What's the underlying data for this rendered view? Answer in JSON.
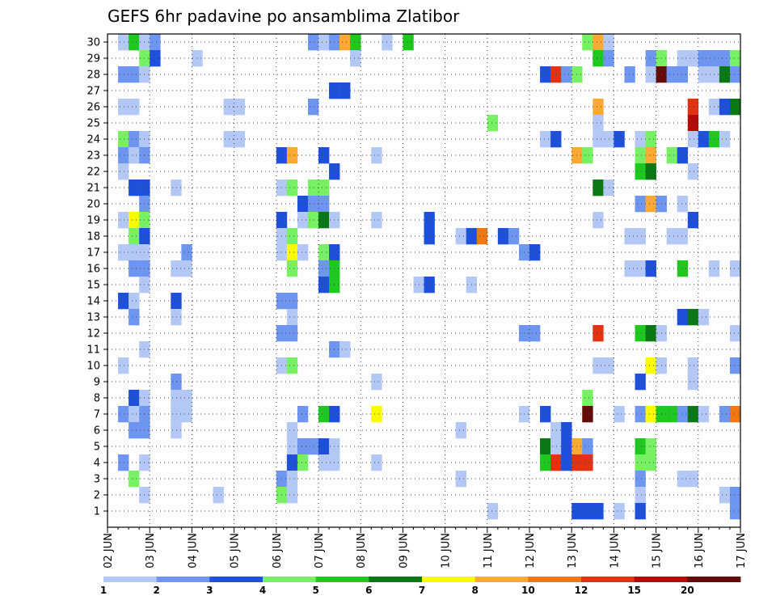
{
  "chart_data": {
    "type": "heatmap",
    "title": "GEFS 6hr padavine po ansamblima Zlatibor",
    "y_ticks": [
      "1",
      "2",
      "3",
      "4",
      "5",
      "6",
      "7",
      "8",
      "9",
      "10",
      "11",
      "12",
      "13",
      "14",
      "15",
      "16",
      "17",
      "18",
      "19",
      "20",
      "21",
      "22",
      "23",
      "24",
      "25",
      "26",
      "27",
      "28",
      "29",
      "30"
    ],
    "x_ticks": [
      "02 JUN",
      "03 JUN",
      "04 JUN",
      "05 JUN",
      "06 JUN",
      "07 JUN",
      "08 JUN",
      "09 JUN",
      "10 JUN",
      "11 JUN",
      "12 JUN",
      "13 JUN",
      "14 JUN",
      "15 JUN",
      "16 JUN",
      "17 JUN"
    ],
    "legend_ticks": [
      "1",
      "2",
      "3",
      "4",
      "5",
      "6",
      "7",
      "8",
      "10",
      "12",
      "15",
      "20"
    ],
    "legend_colors": [
      "#b4c8f5",
      "#6e96f0",
      "#1e50dc",
      "#78f064",
      "#1ec81e",
      "#0a7814",
      "#fafa00",
      "#faaa32",
      "#f07814",
      "#e13214",
      "#b40a0a",
      "#640a0a"
    ],
    "columns_per_day": 4,
    "x_start_offset_steps": 1,
    "cells": [
      [
        30,
        1,
        1
      ],
      [
        30,
        2,
        5
      ],
      [
        30,
        3,
        1
      ],
      [
        30,
        4,
        2
      ],
      [
        30,
        19,
        2
      ],
      [
        30,
        20,
        1
      ],
      [
        30,
        21,
        2
      ],
      [
        30,
        22,
        8
      ],
      [
        30,
        23,
        5
      ],
      [
        30,
        26,
        1
      ],
      [
        30,
        28,
        5
      ],
      [
        30,
        45,
        4
      ],
      [
        30,
        46,
        8
      ],
      [
        30,
        47,
        1
      ],
      [
        30,
        67,
        3
      ],
      [
        30,
        70,
        2
      ],
      [
        30,
        71,
        8
      ],
      [
        30,
        72,
        2
      ],
      [
        29,
        3,
        4
      ],
      [
        29,
        4,
        3
      ],
      [
        29,
        8,
        1
      ],
      [
        29,
        23,
        1
      ],
      [
        29,
        46,
        5
      ],
      [
        29,
        47,
        2
      ],
      [
        29,
        51,
        2
      ],
      [
        29,
        52,
        4
      ],
      [
        29,
        54,
        1
      ],
      [
        29,
        55,
        1
      ],
      [
        29,
        56,
        2
      ],
      [
        29,
        57,
        2
      ],
      [
        29,
        58,
        2
      ],
      [
        29,
        59,
        4
      ],
      [
        28,
        1,
        2
      ],
      [
        28,
        2,
        2
      ],
      [
        28,
        3,
        1
      ],
      [
        28,
        41,
        3
      ],
      [
        28,
        42,
        10
      ],
      [
        28,
        43,
        2
      ],
      [
        28,
        44,
        4
      ],
      [
        28,
        49,
        2
      ],
      [
        28,
        51,
        1
      ],
      [
        28,
        52,
        12
      ],
      [
        28,
        53,
        2
      ],
      [
        28,
        54,
        2
      ],
      [
        28,
        56,
        1
      ],
      [
        28,
        57,
        1
      ],
      [
        28,
        58,
        6
      ],
      [
        28,
        59,
        2
      ],
      [
        28,
        61,
        5
      ],
      [
        28,
        62,
        6
      ],
      [
        28,
        63,
        1
      ],
      [
        28,
        71,
        4
      ],
      [
        28,
        72,
        1
      ],
      [
        27,
        21,
        3
      ],
      [
        27,
        22,
        3
      ],
      [
        27,
        61,
        2
      ],
      [
        27,
        62,
        8
      ],
      [
        26,
        1,
        1
      ],
      [
        26,
        2,
        1
      ],
      [
        26,
        11,
        1
      ],
      [
        26,
        12,
        1
      ],
      [
        26,
        19,
        2
      ],
      [
        26,
        46,
        8
      ],
      [
        26,
        55,
        10
      ],
      [
        26,
        57,
        1
      ],
      [
        26,
        58,
        3
      ],
      [
        26,
        59,
        6
      ],
      [
        26,
        60,
        1
      ],
      [
        26,
        61,
        1
      ],
      [
        26,
        62,
        1
      ],
      [
        25,
        36,
        4
      ],
      [
        25,
        46,
        1
      ],
      [
        25,
        55,
        11
      ],
      [
        25,
        71,
        1
      ],
      [
        24,
        1,
        4
      ],
      [
        24,
        2,
        2
      ],
      [
        24,
        3,
        1
      ],
      [
        24,
        11,
        1
      ],
      [
        24,
        12,
        1
      ],
      [
        24,
        41,
        1
      ],
      [
        24,
        42,
        3
      ],
      [
        24,
        46,
        1
      ],
      [
        24,
        47,
        1
      ],
      [
        24,
        48,
        3
      ],
      [
        24,
        50,
        1
      ],
      [
        24,
        51,
        4
      ],
      [
        24,
        55,
        1
      ],
      [
        24,
        56,
        3
      ],
      [
        24,
        57,
        5
      ],
      [
        24,
        58,
        1
      ],
      [
        24,
        60,
        1
      ],
      [
        24,
        63,
        10
      ],
      [
        24,
        64,
        7
      ],
      [
        24,
        65,
        9
      ],
      [
        23,
        1,
        2
      ],
      [
        23,
        2,
        1
      ],
      [
        23,
        3,
        2
      ],
      [
        23,
        16,
        3
      ],
      [
        23,
        17,
        8
      ],
      [
        23,
        20,
        3
      ],
      [
        23,
        25,
        1
      ],
      [
        23,
        44,
        8
      ],
      [
        23,
        45,
        4
      ],
      [
        23,
        50,
        4
      ],
      [
        23,
        51,
        8
      ],
      [
        23,
        53,
        4
      ],
      [
        23,
        54,
        3
      ],
      [
        23,
        63,
        5
      ],
      [
        23,
        71,
        3
      ],
      [
        22,
        1,
        1
      ],
      [
        22,
        21,
        3
      ],
      [
        22,
        50,
        5
      ],
      [
        22,
        51,
        6
      ],
      [
        22,
        55,
        1
      ],
      [
        21,
        2,
        3
      ],
      [
        21,
        3,
        3
      ],
      [
        21,
        6,
        1
      ],
      [
        21,
        16,
        1
      ],
      [
        21,
        17,
        4
      ],
      [
        21,
        19,
        4
      ],
      [
        21,
        20,
        4
      ],
      [
        21,
        46,
        6
      ],
      [
        21,
        47,
        1
      ],
      [
        20,
        3,
        2
      ],
      [
        20,
        18,
        3
      ],
      [
        20,
        19,
        2
      ],
      [
        20,
        20,
        2
      ],
      [
        20,
        50,
        2
      ],
      [
        20,
        51,
        8
      ],
      [
        20,
        52,
        2
      ],
      [
        20,
        54,
        1
      ],
      [
        19,
        1,
        1
      ],
      [
        19,
        2,
        7
      ],
      [
        19,
        3,
        4
      ],
      [
        19,
        16,
        3
      ],
      [
        19,
        18,
        1
      ],
      [
        19,
        19,
        4
      ],
      [
        19,
        20,
        6
      ],
      [
        19,
        21,
        1
      ],
      [
        19,
        25,
        1
      ],
      [
        19,
        30,
        3
      ],
      [
        19,
        46,
        1
      ],
      [
        19,
        55,
        3
      ],
      [
        19,
        60,
        1
      ],
      [
        18,
        2,
        4
      ],
      [
        18,
        3,
        3
      ],
      [
        18,
        16,
        1
      ],
      [
        18,
        17,
        4
      ],
      [
        18,
        30,
        3
      ],
      [
        18,
        33,
        1
      ],
      [
        18,
        34,
        3
      ],
      [
        18,
        35,
        9
      ],
      [
        18,
        37,
        3
      ],
      [
        18,
        38,
        2
      ],
      [
        18,
        49,
        1
      ],
      [
        18,
        50,
        1
      ],
      [
        18,
        53,
        1
      ],
      [
        18,
        54,
        1
      ],
      [
        18,
        62,
        4
      ],
      [
        18,
        63,
        1
      ],
      [
        17,
        1,
        1
      ],
      [
        17,
        2,
        1
      ],
      [
        17,
        3,
        1
      ],
      [
        17,
        7,
        2
      ],
      [
        17,
        16,
        1
      ],
      [
        17,
        17,
        7
      ],
      [
        17,
        18,
        1
      ],
      [
        17,
        20,
        4
      ],
      [
        17,
        21,
        3
      ],
      [
        17,
        39,
        2
      ],
      [
        17,
        40,
        3
      ],
      [
        17,
        60,
        11
      ],
      [
        17,
        61,
        1
      ],
      [
        17,
        62,
        5
      ],
      [
        17,
        63,
        9
      ],
      [
        17,
        64,
        9
      ],
      [
        17,
        65,
        1
      ],
      [
        17,
        66,
        3
      ],
      [
        17,
        67,
        6
      ],
      [
        17,
        68,
        4
      ],
      [
        16,
        2,
        2
      ],
      [
        16,
        3,
        2
      ],
      [
        16,
        6,
        1
      ],
      [
        16,
        7,
        1
      ],
      [
        16,
        17,
        4
      ],
      [
        16,
        20,
        2
      ],
      [
        16,
        21,
        5
      ],
      [
        16,
        49,
        1
      ],
      [
        16,
        50,
        1
      ],
      [
        16,
        51,
        3
      ],
      [
        16,
        54,
        5
      ],
      [
        16,
        57,
        1
      ],
      [
        16,
        59,
        1
      ],
      [
        16,
        60,
        6
      ],
      [
        16,
        61,
        7
      ],
      [
        16,
        62,
        3
      ],
      [
        16,
        63,
        1
      ],
      [
        16,
        65,
        5
      ],
      [
        16,
        66,
        5
      ],
      [
        16,
        67,
        2
      ],
      [
        15,
        3,
        1
      ],
      [
        15,
        20,
        3
      ],
      [
        15,
        21,
        5
      ],
      [
        15,
        29,
        1
      ],
      [
        15,
        30,
        3
      ],
      [
        15,
        34,
        1
      ],
      [
        14,
        1,
        3
      ],
      [
        14,
        2,
        1
      ],
      [
        14,
        6,
        3
      ],
      [
        14,
        16,
        2
      ],
      [
        14,
        17,
        2
      ],
      [
        14,
        67,
        2
      ],
      [
        14,
        68,
        3
      ],
      [
        13,
        2,
        2
      ],
      [
        13,
        6,
        1
      ],
      [
        13,
        17,
        1
      ],
      [
        13,
        54,
        3
      ],
      [
        13,
        55,
        6
      ],
      [
        13,
        56,
        1
      ],
      [
        12,
        16,
        2
      ],
      [
        12,
        17,
        2
      ],
      [
        12,
        39,
        2
      ],
      [
        12,
        40,
        2
      ],
      [
        12,
        46,
        10
      ],
      [
        12,
        50,
        5
      ],
      [
        12,
        51,
        6
      ],
      [
        12,
        52,
        1
      ],
      [
        12,
        59,
        1
      ],
      [
        11,
        3,
        1
      ],
      [
        11,
        21,
        2
      ],
      [
        11,
        22,
        1
      ],
      [
        11,
        63,
        3
      ],
      [
        11,
        64,
        3
      ],
      [
        10,
        1,
        1
      ],
      [
        10,
        16,
        1
      ],
      [
        10,
        17,
        4
      ],
      [
        10,
        46,
        1
      ],
      [
        10,
        47,
        1
      ],
      [
        10,
        51,
        7
      ],
      [
        10,
        52,
        1
      ],
      [
        10,
        55,
        1
      ],
      [
        10,
        59,
        2
      ],
      [
        9,
        6,
        2
      ],
      [
        9,
        25,
        1
      ],
      [
        9,
        50,
        3
      ],
      [
        9,
        55,
        1
      ],
      [
        9,
        61,
        1
      ],
      [
        9,
        62,
        1
      ],
      [
        9,
        63,
        2
      ],
      [
        8,
        2,
        3
      ],
      [
        8,
        3,
        1
      ],
      [
        8,
        6,
        1
      ],
      [
        8,
        7,
        1
      ],
      [
        8,
        45,
        4
      ],
      [
        7,
        1,
        2
      ],
      [
        7,
        2,
        1
      ],
      [
        7,
        3,
        2
      ],
      [
        7,
        6,
        1
      ],
      [
        7,
        7,
        1
      ],
      [
        7,
        18,
        2
      ],
      [
        7,
        20,
        5
      ],
      [
        7,
        21,
        3
      ],
      [
        7,
        25,
        7
      ],
      [
        7,
        39,
        1
      ],
      [
        7,
        41,
        3
      ],
      [
        7,
        45,
        12
      ],
      [
        7,
        48,
        1
      ],
      [
        7,
        50,
        2
      ],
      [
        7,
        51,
        7
      ],
      [
        7,
        52,
        5
      ],
      [
        7,
        53,
        5
      ],
      [
        7,
        54,
        2
      ],
      [
        7,
        55,
        6
      ],
      [
        7,
        56,
        1
      ],
      [
        7,
        58,
        2
      ],
      [
        7,
        59,
        9
      ],
      [
        7,
        61,
        3
      ],
      [
        7,
        63,
        1
      ],
      [
        7,
        64,
        1
      ],
      [
        7,
        67,
        2
      ],
      [
        7,
        68,
        2
      ],
      [
        6,
        2,
        2
      ],
      [
        6,
        3,
        2
      ],
      [
        6,
        6,
        1
      ],
      [
        6,
        17,
        1
      ],
      [
        6,
        33,
        1
      ],
      [
        6,
        42,
        1
      ],
      [
        6,
        43,
        3
      ],
      [
        6,
        63,
        2
      ],
      [
        5,
        17,
        1
      ],
      [
        5,
        18,
        2
      ],
      [
        5,
        19,
        2
      ],
      [
        5,
        20,
        3
      ],
      [
        5,
        21,
        1
      ],
      [
        5,
        41,
        6
      ],
      [
        5,
        42,
        1
      ],
      [
        5,
        43,
        3
      ],
      [
        5,
        44,
        8
      ],
      [
        5,
        45,
        2
      ],
      [
        5,
        50,
        5
      ],
      [
        5,
        51,
        4
      ],
      [
        5,
        62,
        1
      ],
      [
        5,
        63,
        3
      ],
      [
        4,
        1,
        2
      ],
      [
        4,
        3,
        1
      ],
      [
        4,
        17,
        3
      ],
      [
        4,
        18,
        4
      ],
      [
        4,
        20,
        1
      ],
      [
        4,
        21,
        1
      ],
      [
        4,
        25,
        1
      ],
      [
        4,
        41,
        5
      ],
      [
        4,
        42,
        10
      ],
      [
        4,
        43,
        3
      ],
      [
        4,
        44,
        10
      ],
      [
        4,
        45,
        10
      ],
      [
        4,
        50,
        4
      ],
      [
        4,
        51,
        4
      ],
      [
        4,
        61,
        1
      ],
      [
        4,
        62,
        1
      ],
      [
        3,
        2,
        4
      ],
      [
        3,
        16,
        2
      ],
      [
        3,
        17,
        1
      ],
      [
        3,
        33,
        1
      ],
      [
        3,
        50,
        2
      ],
      [
        3,
        54,
        1
      ],
      [
        3,
        55,
        1
      ],
      [
        2,
        3,
        1
      ],
      [
        2,
        10,
        1
      ],
      [
        2,
        16,
        4
      ],
      [
        2,
        17,
        1
      ],
      [
        2,
        50,
        1
      ],
      [
        2,
        58,
        1
      ],
      [
        2,
        59,
        2
      ],
      [
        1,
        36,
        1
      ],
      [
        1,
        44,
        3
      ],
      [
        1,
        45,
        3
      ],
      [
        1,
        46,
        3
      ],
      [
        1,
        48,
        1
      ],
      [
        1,
        50,
        3
      ],
      [
        1,
        59,
        2
      ],
      [
        1,
        61,
        6
      ],
      [
        1,
        62,
        6
      ],
      [
        1,
        63,
        7
      ],
      [
        1,
        64,
        6
      ],
      [
        1,
        65,
        12
      ],
      [
        1,
        66,
        7
      ]
    ]
  }
}
